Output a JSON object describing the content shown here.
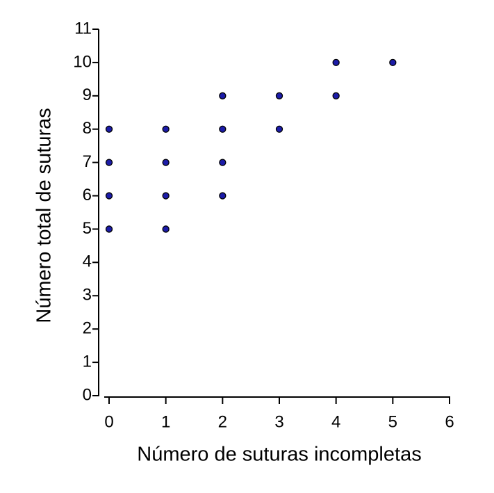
{
  "chart_data": {
    "type": "scatter",
    "x_label": "Número de suturas incompletas",
    "y_label": "Número total de suturas",
    "x": [
      0,
      0,
      0,
      0,
      1,
      1,
      1,
      1,
      2,
      2,
      2,
      2,
      3,
      3,
      4,
      4,
      5
    ],
    "y": [
      5,
      6,
      7,
      8,
      5,
      6,
      7,
      8,
      6,
      7,
      8,
      9,
      8,
      9,
      9,
      10,
      10
    ],
    "color": "#1c1ca8",
    "xlim": [
      0,
      6
    ],
    "xticks": [
      0,
      1,
      2,
      3,
      4,
      5,
      6
    ],
    "ylim": [
      0,
      11
    ],
    "yticks": [
      0,
      1,
      2,
      3,
      4,
      5,
      6,
      7,
      8,
      9,
      10,
      11
    ],
    "grid": false
  }
}
